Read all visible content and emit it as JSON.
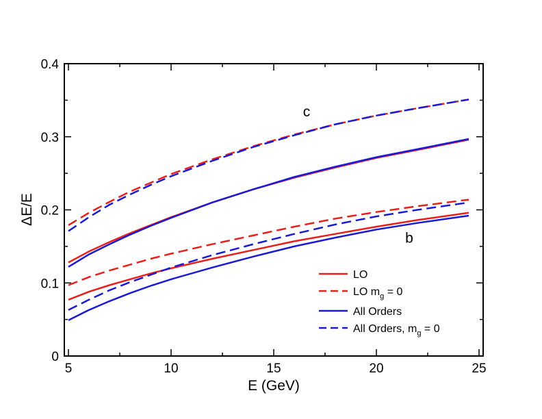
{
  "chart_data": {
    "type": "line",
    "title": "",
    "xlabel": "E (GeV)",
    "ylabel": "ΔE/E",
    "xlim": [
      4.8,
      25.2
    ],
    "ylim": [
      0,
      0.4
    ],
    "xticks": [
      5,
      10,
      15,
      20,
      25
    ],
    "yticks": [
      0,
      0.1,
      0.2,
      0.3,
      0.4
    ],
    "xtick_labels": [
      "5",
      "10",
      "15",
      "20",
      "25"
    ],
    "ytick_labels": [
      "0",
      "0.1",
      "0.2",
      "0.3",
      "0.4"
    ],
    "grid": false,
    "legend": {
      "position": "lower-right",
      "entries": [
        {
          "label": "LO",
          "sub": "",
          "tail": "",
          "color": "#e8201c",
          "dash": "solid"
        },
        {
          "label": "LO m",
          "sub": "g",
          "tail": " = 0",
          "color": "#e8201c",
          "dash": "dashed"
        },
        {
          "label": "All Orders",
          "sub": "",
          "tail": "",
          "color": "#1a1ad6",
          "dash": "solid"
        },
        {
          "label": "All Orders, m",
          "sub": "g",
          "tail": " = 0",
          "color": "#1a1ad6",
          "dash": "dashed"
        }
      ]
    },
    "annotations": [
      {
        "text": "c",
        "x": 16.6,
        "y": 0.328
      },
      {
        "text": "b",
        "x": 21.6,
        "y": 0.155
      }
    ],
    "series": [
      {
        "name": "LO (c)",
        "group": "c",
        "color": "#e8201c",
        "dash": "solid",
        "x": [
          5,
          6,
          7,
          8,
          9,
          10,
          12,
          14,
          16,
          18,
          20,
          22,
          24.5
        ],
        "y": [
          0.128,
          0.143,
          0.156,
          0.168,
          0.179,
          0.19,
          0.21,
          0.228,
          0.244,
          0.258,
          0.271,
          0.282,
          0.296
        ]
      },
      {
        "name": "LO m_g = 0 (c)",
        "group": "c",
        "color": "#e8201c",
        "dash": "dashed",
        "x": [
          5,
          6,
          7,
          8,
          9,
          10,
          12,
          14,
          16,
          18,
          20,
          22,
          24.5
        ],
        "y": [
          0.179,
          0.196,
          0.211,
          0.225,
          0.237,
          0.249,
          0.269,
          0.287,
          0.303,
          0.317,
          0.329,
          0.339,
          0.351
        ]
      },
      {
        "name": "All Orders (c)",
        "group": "c",
        "color": "#1a1ad6",
        "dash": "solid",
        "x": [
          5,
          6,
          7,
          8,
          9,
          10,
          12,
          14,
          16,
          18,
          20,
          22,
          24.5
        ],
        "y": [
          0.122,
          0.139,
          0.153,
          0.166,
          0.178,
          0.189,
          0.21,
          0.228,
          0.245,
          0.259,
          0.272,
          0.283,
          0.297
        ]
      },
      {
        "name": "All Orders, m_g = 0 (c)",
        "group": "c",
        "color": "#1a1ad6",
        "dash": "dashed",
        "x": [
          5,
          6,
          7,
          8,
          9,
          10,
          12,
          14,
          16,
          18,
          20,
          22,
          24.5
        ],
        "y": [
          0.171,
          0.19,
          0.207,
          0.221,
          0.234,
          0.246,
          0.267,
          0.286,
          0.302,
          0.317,
          0.329,
          0.339,
          0.351
        ]
      },
      {
        "name": "LO (b)",
        "group": "b",
        "color": "#e8201c",
        "dash": "solid",
        "x": [
          5,
          6,
          7,
          8,
          9,
          10,
          12,
          14,
          16,
          18,
          20,
          22,
          24.5
        ],
        "y": [
          0.077,
          0.088,
          0.097,
          0.105,
          0.113,
          0.12,
          0.133,
          0.145,
          0.157,
          0.167,
          0.177,
          0.186,
          0.196
        ]
      },
      {
        "name": "LO m_g = 0 (b)",
        "group": "b",
        "color": "#e8201c",
        "dash": "dashed",
        "x": [
          5,
          6,
          7,
          8,
          9,
          10,
          12,
          14,
          16,
          18,
          20,
          22,
          24.5
        ],
        "y": [
          0.097,
          0.108,
          0.117,
          0.125,
          0.133,
          0.14,
          0.153,
          0.165,
          0.177,
          0.188,
          0.197,
          0.205,
          0.214
        ]
      },
      {
        "name": "All Orders (b)",
        "group": "b",
        "color": "#1a1ad6",
        "dash": "solid",
        "x": [
          5,
          6,
          7,
          8,
          9,
          10,
          12,
          14,
          16,
          18,
          20,
          22,
          24.5
        ],
        "y": [
          0.049,
          0.063,
          0.075,
          0.086,
          0.096,
          0.105,
          0.121,
          0.136,
          0.15,
          0.162,
          0.173,
          0.182,
          0.192
        ]
      },
      {
        "name": "All Orders, m_g = 0 (b)",
        "group": "b",
        "color": "#1a1ad6",
        "dash": "dashed",
        "x": [
          5,
          6,
          7,
          8,
          9,
          10,
          12,
          14,
          16,
          18,
          20,
          22,
          24.5
        ],
        "y": [
          0.063,
          0.077,
          0.09,
          0.101,
          0.111,
          0.121,
          0.138,
          0.153,
          0.167,
          0.18,
          0.191,
          0.2,
          0.21
        ]
      }
    ]
  }
}
